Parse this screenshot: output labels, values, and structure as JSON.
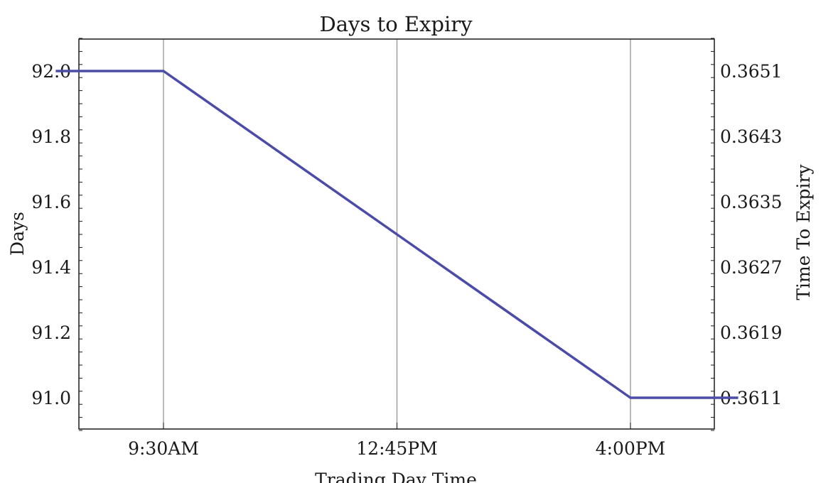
{
  "chart_data": {
    "type": "line",
    "title": "Days to Expiry",
    "xlabel": "Trading Day Time",
    "ylabel": "Days",
    "y2label": "Time To Expiry",
    "x_ticks": [
      "9:30AM",
      "12:45PM",
      "4:00PM"
    ],
    "y_ticks": [
      "91.0",
      "91.2",
      "91.4",
      "91.6",
      "91.8",
      "92.0"
    ],
    "y2_ticks": [
      "0.3611",
      "0.3619",
      "0.3627",
      "0.3635",
      "0.3643",
      "0.3651"
    ],
    "ylim": [
      90.9,
      92.1
    ],
    "grid": "vertical lines at x ticks",
    "series": [
      {
        "points": [
          {
            "x": "8:00AM",
            "y": 92.0
          },
          {
            "x": "9:30AM",
            "y": 92.0
          },
          {
            "x": "12:45PM",
            "y": 91.5
          },
          {
            "x": "4:00PM",
            "y": 91.0
          },
          {
            "x": "5:30PM",
            "y": 91.0
          }
        ]
      }
    ],
    "colors": {
      "line": "#4b4ba8",
      "grid": "#8c8c8c",
      "axis": "#1a1a1a"
    }
  }
}
